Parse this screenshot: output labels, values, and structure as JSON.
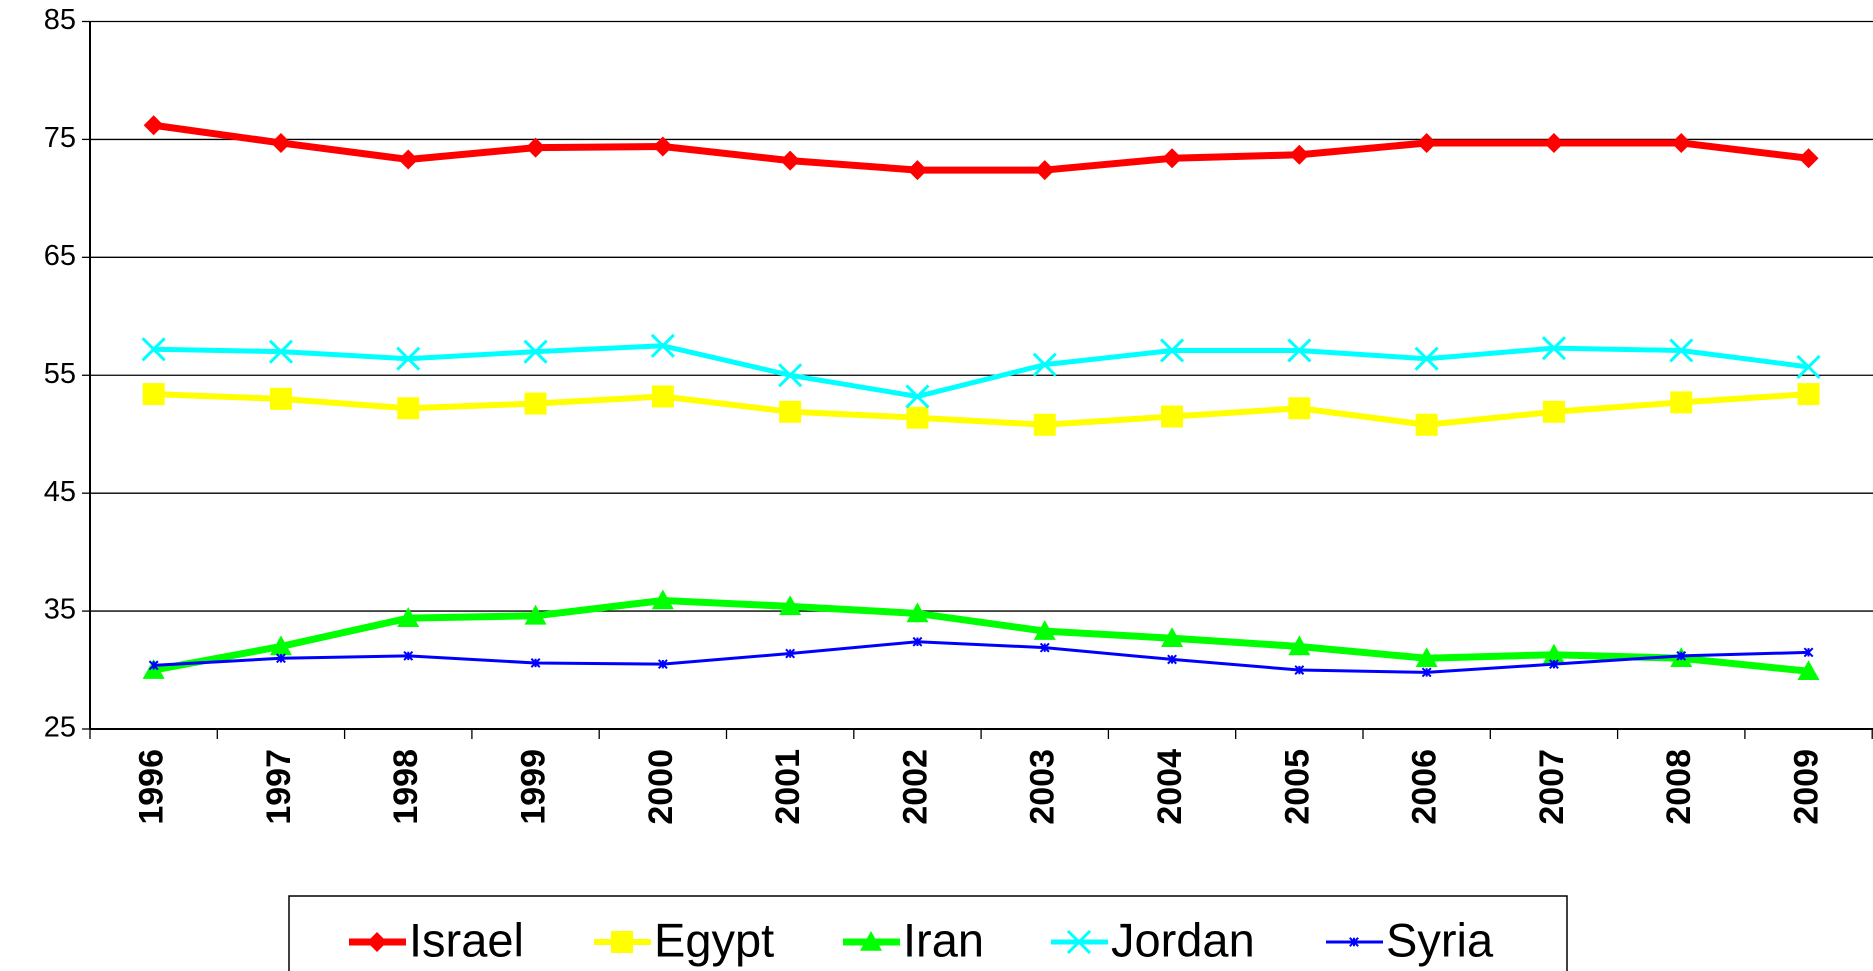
{
  "chart_data": {
    "type": "line",
    "categories": [
      "1996",
      "1997",
      "1998",
      "1999",
      "2000",
      "2001",
      "2002",
      "2003",
      "2004",
      "2005",
      "2006",
      "2007",
      "2008",
      "2009"
    ],
    "series": [
      {
        "name": "Israel",
        "color": "#ff0000",
        "marker": "diamond",
        "values": [
          76.2,
          74.7,
          73.3,
          74.3,
          74.4,
          73.2,
          72.4,
          72.4,
          73.4,
          73.7,
          74.7,
          74.7,
          74.7,
          73.4
        ]
      },
      {
        "name": "Egypt",
        "color": "#ffff00",
        "marker": "square",
        "values": [
          53.4,
          53.0,
          52.2,
          52.6,
          53.2,
          51.9,
          51.4,
          50.8,
          51.5,
          52.2,
          50.8,
          51.9,
          52.7,
          53.4
        ]
      },
      {
        "name": "Iran",
        "color": "#00ff00",
        "marker": "triangle",
        "values": [
          30.0,
          32.0,
          34.4,
          34.6,
          35.9,
          35.4,
          34.8,
          33.3,
          32.7,
          32.0,
          31.0,
          31.3,
          31.0,
          29.9
        ]
      },
      {
        "name": "Jordan",
        "color": "#00ffff",
        "marker": "x",
        "values": [
          57.2,
          57.0,
          56.4,
          57.0,
          57.5,
          55.0,
          53.2,
          55.9,
          57.1,
          57.1,
          56.4,
          57.3,
          57.1,
          55.7
        ]
      },
      {
        "name": "Syria",
        "color": "#0000ff",
        "marker": "star",
        "values": [
          30.4,
          31.0,
          31.2,
          30.6,
          30.5,
          31.4,
          32.4,
          31.9,
          30.9,
          30.0,
          29.8,
          30.5,
          31.2,
          31.5
        ]
      }
    ],
    "ylim": [
      25,
      85
    ],
    "yticks": [
      25,
      35,
      45,
      55,
      65,
      75,
      85
    ],
    "grid": true,
    "legend": "bottom"
  }
}
